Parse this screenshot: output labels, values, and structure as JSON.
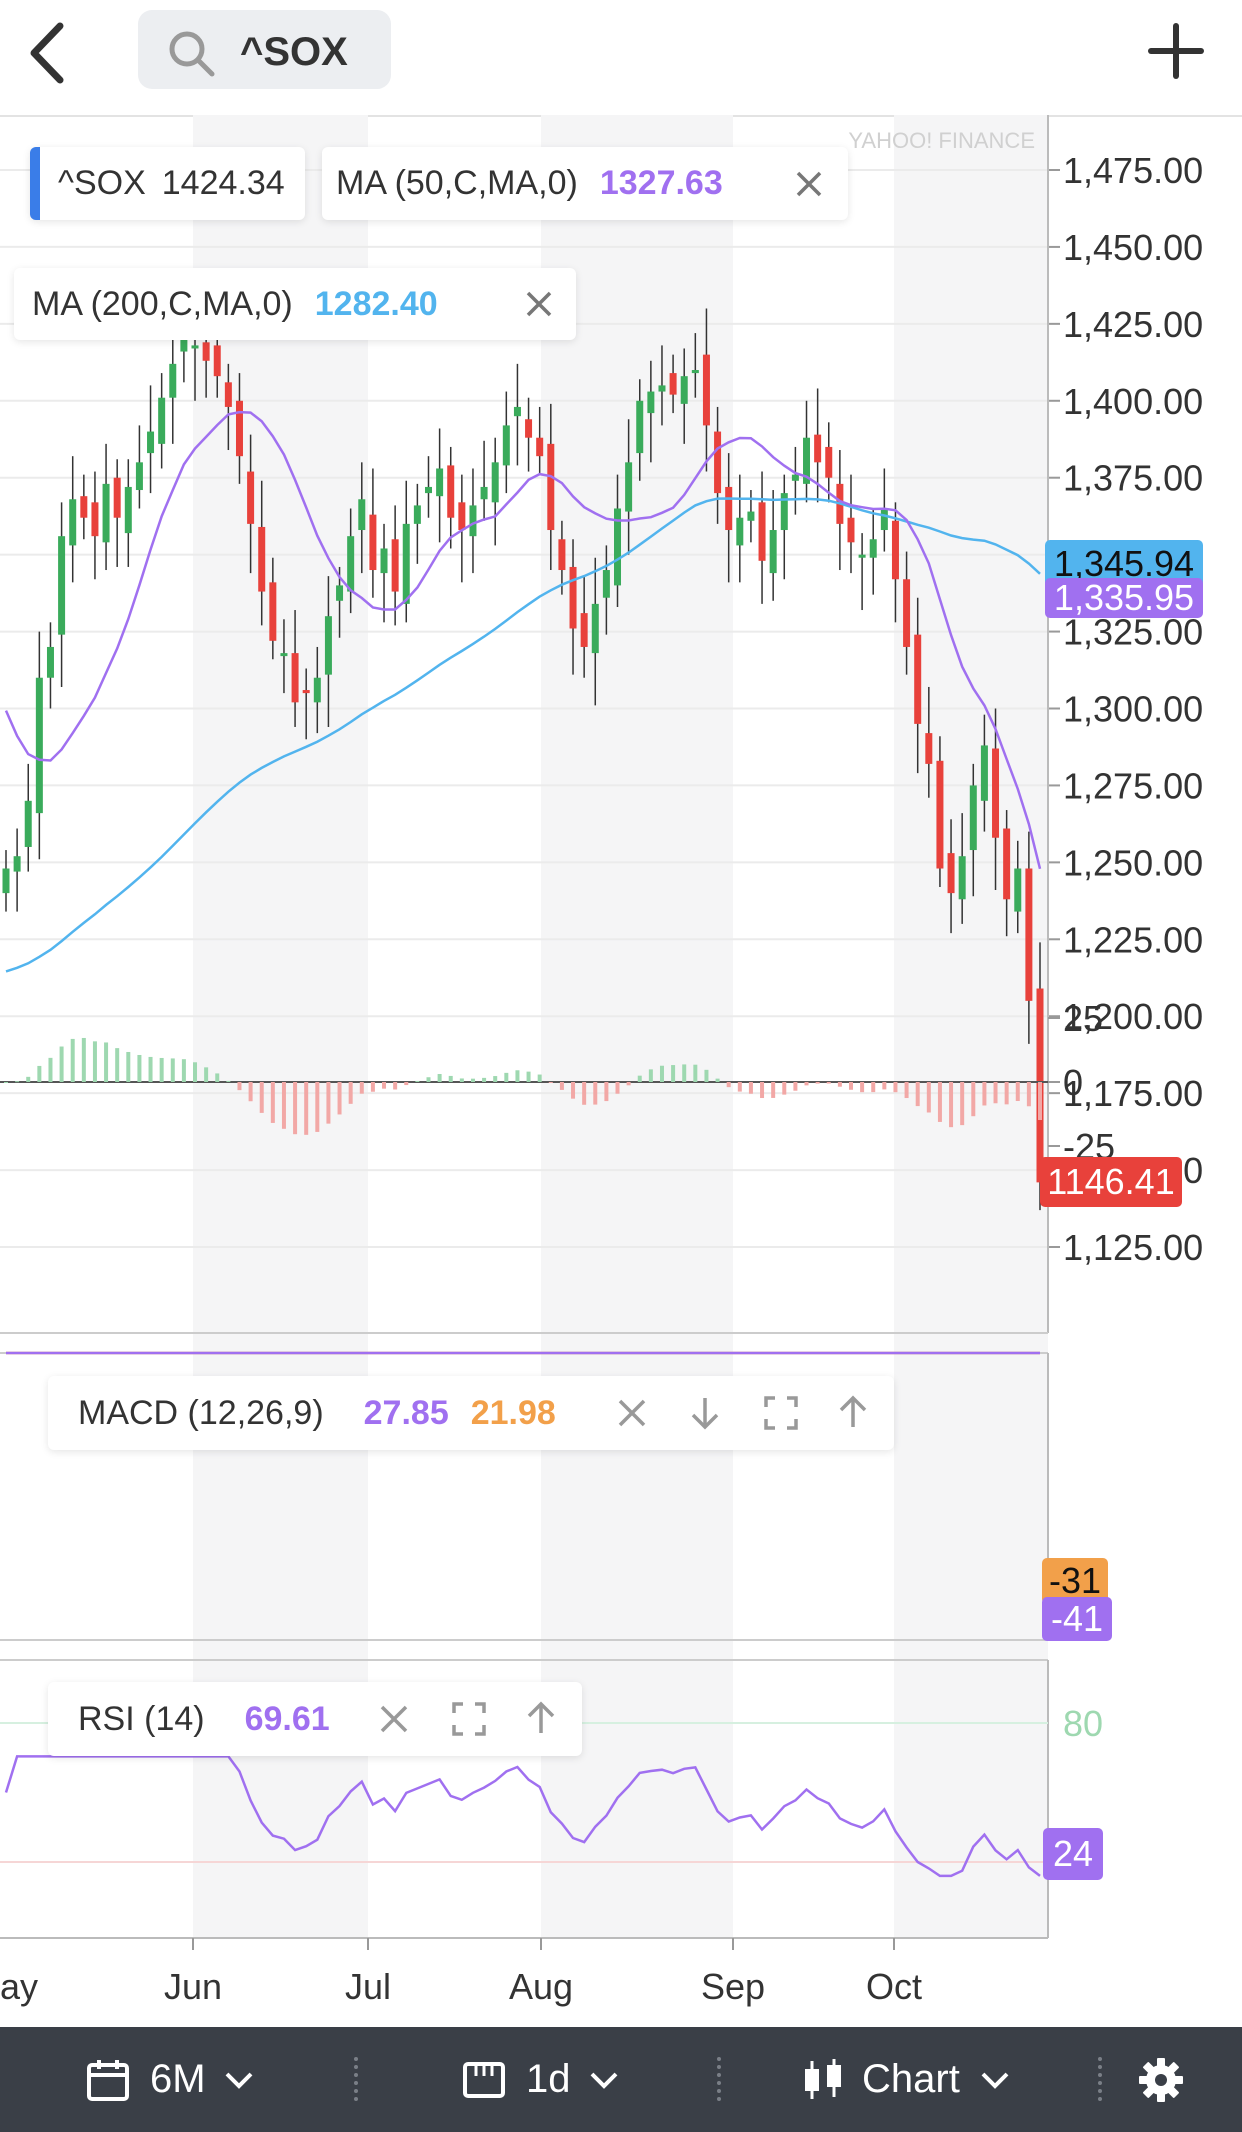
{
  "header": {
    "search_query": "^SOX"
  },
  "legend": {
    "symbol": "^SOX",
    "symbol_value": "1424.34",
    "ma50_label": "MA (50,C,MA,0)",
    "ma50_value": "1327.63",
    "ma200_label": "MA (200,C,MA,0)",
    "ma200_value": "1282.40"
  },
  "watermark": "YAHOO! FINANCE",
  "colors": {
    "up": "#3aab5b",
    "down": "#e8413b",
    "ma50": "#a070f0",
    "ma200": "#52b4ee",
    "macd": "#a070f0",
    "signal": "#f2a04a",
    "rsi": "#a070f0"
  },
  "price_axis": [
    "1,475.00",
    "1,450.00",
    "1,425.00",
    "1,400.00",
    "1,375.00",
    "1,350.00",
    "1,325.00",
    "1,300.00",
    "1,275.00",
    "1,250.00",
    "1,225.00",
    "1,200.00",
    "1,175.00",
    "1,150.00",
    "1,125.00"
  ],
  "badges": {
    "ma200_last": "1,345.94",
    "ma50_last": "1,335.95",
    "last_price": "1146.41",
    "macd_signal_last": "-31",
    "macd_last": "-41",
    "rsi_last": "24"
  },
  "macd": {
    "label": "MACD (12,26,9)",
    "macd_value": "27.85",
    "signal_value": "21.98",
    "axis": [
      "25",
      "0",
      "-25"
    ]
  },
  "rsi": {
    "label": "RSI (14)",
    "value": "69.61",
    "axis": [
      "80"
    ]
  },
  "months": [
    "ay",
    "Jun",
    "Jul",
    "Aug",
    "Sep",
    "Oct"
  ],
  "toolbar": {
    "range": "6M",
    "interval": "1d",
    "chart_type": "Chart"
  },
  "chart_data": {
    "type": "candlestick",
    "price_range": [
      1105,
      1485
    ],
    "macd_range": [
      -45,
      30
    ],
    "rsi_range": [
      0,
      100
    ],
    "closes": [
      1248,
      1252,
      1270,
      1310,
      1320,
      1356,
      1368,
      1362,
      1356,
      1373,
      1362,
      1372,
      1380,
      1390,
      1401,
      1412,
      1420,
      1418,
      1413,
      1408,
      1398,
      1382,
      1360,
      1338,
      1322,
      1318,
      1302,
      1305,
      1310,
      1330,
      1340,
      1356,
      1368,
      1345,
      1352,
      1338,
      1360,
      1366,
      1372,
      1378,
      1362,
      1358,
      1366,
      1372,
      1380,
      1392,
      1398,
      1388,
      1382,
      1358,
      1345,
      1326,
      1320,
      1334,
      1345,
      1365,
      1380,
      1400,
      1403,
      1405,
      1402,
      1408,
      1410,
      1392,
      1370,
      1358,
      1362,
      1364,
      1348,
      1358,
      1370,
      1376,
      1388,
      1380,
      1375,
      1360,
      1354,
      1350,
      1355,
      1365,
      1342,
      1320,
      1295,
      1282,
      1248,
      1240,
      1252,
      1275,
      1288,
      1258,
      1238,
      1248,
      1205,
      1146
    ]
  }
}
